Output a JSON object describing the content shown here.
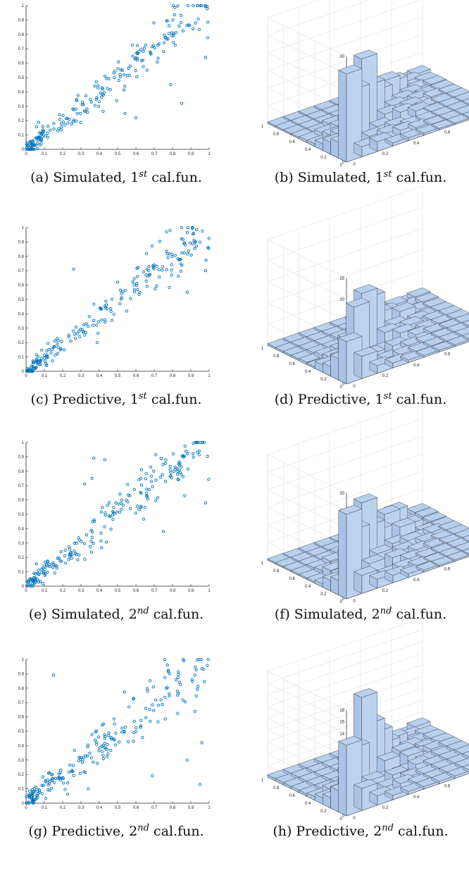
{
  "chart_data": [
    {
      "id": "a",
      "type": "scatter",
      "caption": {
        "letter": "(a)",
        "prefix": "Simulated, 1",
        "sup": "st",
        "suffix": "cal.fun."
      },
      "xlim": [
        0,
        1
      ],
      "ylim": [
        0,
        1
      ],
      "xticks": [
        "0",
        "0.1",
        "0.2",
        "0.3",
        "0.4",
        "0.5",
        "0.6",
        "0.7",
        "0.8",
        "0.9",
        "1"
      ],
      "yticks": [
        "0",
        "0.1",
        "0.2",
        "0.3",
        "0.4",
        "0.5",
        "0.6",
        "0.7",
        "0.8",
        "0.9",
        "1"
      ],
      "marker_color": "#0072bd",
      "n_points": 220,
      "seed": 11,
      "noise": 0.08,
      "outliers": [
        [
          0.6,
          0.22
        ],
        [
          0.85,
          0.32
        ],
        [
          0.79,
          0.45
        ],
        [
          0.98,
          0.64
        ],
        [
          0.54,
          0.25
        ]
      ]
    },
    {
      "id": "b",
      "type": "bar3d",
      "caption": {
        "letter": "(b)",
        "prefix": "Simulated, 1",
        "sup": "st",
        "suffix": "cal.fun."
      },
      "zlim": [
        0,
        30
      ],
      "zticks": [
        "0",
        "5",
        "10",
        "15",
        "20",
        "25",
        "30"
      ],
      "x_ticks": [
        "0",
        "0.2",
        "0.4",
        "0.6",
        "0.8"
      ],
      "y_ticks": [
        "0",
        "0.2",
        "0.4",
        "0.6",
        "0.8",
        "1"
      ],
      "bar_color": "#b7d0ee",
      "edge_color": "#3c3c3c",
      "seed": 3,
      "diag_peaks": [
        25,
        18,
        24,
        14,
        10
      ]
    },
    {
      "id": "c",
      "type": "scatter",
      "caption": {
        "letter": "(c)",
        "prefix": "Predictive, 1",
        "sup": "st",
        "suffix": "cal.fun."
      },
      "xlim": [
        0,
        1
      ],
      "ylim": [
        0,
        1
      ],
      "xticks": [
        "0",
        "0.1",
        "0.2",
        "0.3",
        "0.4",
        "0.5",
        "0.6",
        "0.7",
        "0.8",
        "0.9",
        "1"
      ],
      "yticks": [
        "0",
        "0.1",
        "0.2",
        "0.3",
        "0.4",
        "0.5",
        "0.6",
        "0.7",
        "0.8",
        "0.9",
        "1"
      ],
      "marker_color": "#0072bd",
      "n_points": 220,
      "seed": 23,
      "noise": 0.07,
      "outliers": [
        [
          0.26,
          0.71
        ],
        [
          0.98,
          0.7
        ],
        [
          0.5,
          0.62
        ],
        [
          0.88,
          0.55
        ]
      ]
    },
    {
      "id": "d",
      "type": "bar3d",
      "caption": {
        "letter": "(d)",
        "prefix": "Predictive, 1",
        "sup": "st",
        "suffix": "cal.fun."
      },
      "zlim": [
        0,
        25
      ],
      "zticks": [
        "0",
        "5",
        "10",
        "15",
        "20",
        "25"
      ],
      "x_ticks": [
        "0",
        "0.2",
        "0.4",
        "0.6",
        "0.8"
      ],
      "y_ticks": [
        "0",
        "0.2",
        "0.4",
        "0.6",
        "0.8",
        "1"
      ],
      "bar_color": "#b7d0ee",
      "edge_color": "#3c3c3c",
      "seed": 7,
      "diag_peaks": [
        10,
        16,
        17,
        14,
        8
      ]
    },
    {
      "id": "e",
      "type": "scatter",
      "caption": {
        "letter": "(e)",
        "prefix": "Simulated, 2",
        "sup": "nd",
        "suffix": "cal.fun."
      },
      "xlim": [
        0,
        1
      ],
      "ylim": [
        0,
        1
      ],
      "xticks": [
        "0",
        "0.1",
        "0.2",
        "0.3",
        "0.4",
        "0.5",
        "0.6",
        "0.7",
        "0.8",
        "0.9",
        "1"
      ],
      "yticks": [
        "0",
        "0.1",
        "0.2",
        "0.3",
        "0.4",
        "0.5",
        "0.6",
        "0.7",
        "0.8",
        "0.9",
        "1"
      ],
      "marker_color": "#0072bd",
      "n_points": 220,
      "seed": 37,
      "noise": 0.08,
      "outliers": [
        [
          0.37,
          0.89
        ],
        [
          0.43,
          0.88
        ],
        [
          0.32,
          0.71
        ],
        [
          0.75,
          0.38
        ],
        [
          0.98,
          0.58
        ],
        [
          0.36,
          0.75
        ]
      ]
    },
    {
      "id": "f",
      "type": "bar3d",
      "caption": {
        "letter": "(f)",
        "prefix": "Simulated, 2",
        "sup": "nd",
        "suffix": "cal.fun."
      },
      "zlim": [
        0,
        30
      ],
      "zticks": [
        "0",
        "5",
        "10",
        "15",
        "20",
        "25",
        "30"
      ],
      "x_ticks": [
        "0",
        "0.2",
        "0.4",
        "0.6",
        "0.8"
      ],
      "y_ticks": [
        "0",
        "0.2",
        "0.4",
        "0.6",
        "0.8",
        "1"
      ],
      "bar_color": "#b7d0ee",
      "edge_color": "#3c3c3c",
      "seed": 13,
      "diag_peaks": [
        24,
        17,
        22,
        13,
        9
      ]
    },
    {
      "id": "g",
      "type": "scatter",
      "caption": {
        "letter": "(g)",
        "prefix": "Predictive, 2",
        "sup": "nd",
        "suffix": "cal.fun."
      },
      "xlim": [
        0,
        1
      ],
      "ylim": [
        0,
        1
      ],
      "xticks": [
        "0",
        "0.1",
        "0.2",
        "0.3",
        "0.4",
        "0.5",
        "0.6",
        "0.7",
        "0.8",
        "0.9",
        "1"
      ],
      "yticks": [
        "0",
        "0.1",
        "0.2",
        "0.3",
        "0.4",
        "0.5",
        "0.6",
        "0.7",
        "0.8",
        "0.9",
        "1"
      ],
      "marker_color": "#0072bd",
      "n_points": 220,
      "seed": 51,
      "noise": 0.09,
      "outliers": [
        [
          0.15,
          0.89
        ],
        [
          0.95,
          0.13
        ],
        [
          0.34,
          0.1
        ],
        [
          0.69,
          0.19
        ],
        [
          0.88,
          0.3
        ],
        [
          0.96,
          0.42
        ]
      ]
    },
    {
      "id": "h",
      "type": "bar3d",
      "caption": {
        "letter": "(h)",
        "prefix": "Predictive, 2",
        "sup": "nd",
        "suffix": "cal.fun."
      },
      "zlim": [
        0,
        18
      ],
      "zticks": [
        "0",
        "2",
        "4",
        "6",
        "8",
        "10",
        "12",
        "14",
        "16",
        "18"
      ],
      "x_ticks": [
        "0",
        "0.2",
        "0.4",
        "0.6",
        "0.8"
      ],
      "y_ticks": [
        "0",
        "0.2",
        "0.4",
        "0.6",
        "0.8",
        "1"
      ],
      "bar_color": "#b7d0ee",
      "edge_color": "#3c3c3c",
      "seed": 29,
      "diag_peaks": [
        12,
        10,
        17,
        11,
        8
      ]
    }
  ]
}
